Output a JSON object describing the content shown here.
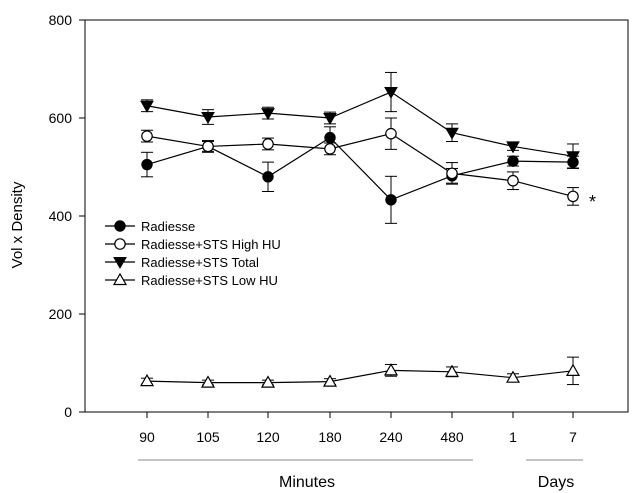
{
  "chart_data": {
    "type": "line",
    "xlabel": "Minutes",
    "xlabel_secondary": "Days",
    "ylabel": "Vol x Density",
    "categories": [
      "90",
      "105",
      "120",
      "180",
      "240",
      "480",
      "1",
      "7"
    ],
    "ylim": [
      0,
      800
    ],
    "yticks": [
      "0",
      "200",
      "400",
      "600",
      "800"
    ],
    "legend_position": "left-middle",
    "annotation": "*",
    "series": [
      {
        "name": "Radiesse",
        "marker": "filled-circle",
        "values": [
          505,
          542,
          480,
          560,
          433,
          482,
          512,
          510
        ],
        "errors": [
          25,
          10,
          30,
          22,
          48,
          15,
          10,
          12
        ]
      },
      {
        "name": "Radiesse+STS High HU",
        "marker": "open-circle",
        "values": [
          563,
          542,
          547,
          537,
          568,
          487,
          472,
          440
        ],
        "errors": [
          12,
          12,
          12,
          12,
          32,
          22,
          18,
          18
        ]
      },
      {
        "name": "Radiesse+STS Total",
        "marker": "filled-triangle-down",
        "values": [
          625,
          602,
          610,
          600,
          653,
          570,
          542,
          522
        ],
        "errors": [
          12,
          15,
          12,
          12,
          40,
          18,
          8,
          25
        ]
      },
      {
        "name": "Radiesse+STS Low HU",
        "marker": "open-triangle-up",
        "values": [
          63,
          60,
          60,
          62,
          85,
          82,
          70,
          84
        ],
        "errors": [
          6,
          5,
          5,
          6,
          12,
          10,
          8,
          28
        ]
      }
    ]
  }
}
